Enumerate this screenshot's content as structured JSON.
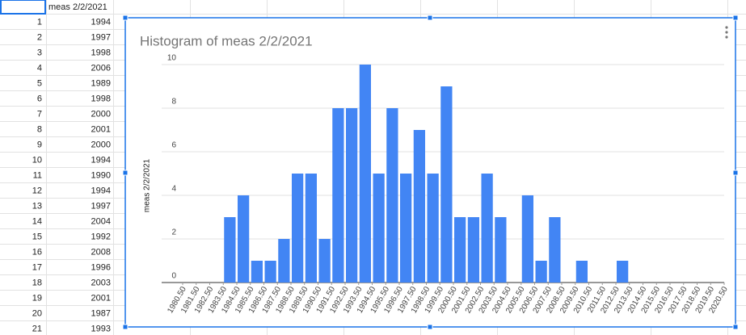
{
  "table": {
    "header": [
      "",
      "meas 2/2/2021"
    ],
    "rows": [
      [
        1,
        1994
      ],
      [
        2,
        1997
      ],
      [
        3,
        1998
      ],
      [
        4,
        2006
      ],
      [
        5,
        1989
      ],
      [
        6,
        1998
      ],
      [
        7,
        2000
      ],
      [
        8,
        2001
      ],
      [
        9,
        2000
      ],
      [
        10,
        1994
      ],
      [
        11,
        1990
      ],
      [
        12,
        1994
      ],
      [
        13,
        1997
      ],
      [
        14,
        2004
      ],
      [
        15,
        1992
      ],
      [
        16,
        2008
      ],
      [
        17,
        1996
      ],
      [
        18,
        2003
      ],
      [
        19,
        2001
      ],
      [
        20,
        1987
      ],
      [
        21,
        1993
      ]
    ]
  },
  "chart_data": {
    "type": "histogram",
    "title": "Histogram of meas 2/2/2021",
    "y_label": "meas 2/2/2021",
    "color": "#4285f4",
    "grid": true,
    "bins": [
      1980.5,
      1981.5,
      1982.5,
      1983.5,
      1984.5,
      1985.5,
      1986.5,
      1987.5,
      1988.5,
      1989.5,
      1990.5,
      1991.5,
      1992.5,
      1993.5,
      1994.5,
      1995.5,
      1996.5,
      1997.5,
      1998.5,
      1999.5,
      2000.5,
      2001.5,
      2002.5,
      2003.5,
      2004.5,
      2005.5,
      2006.5,
      2007.5,
      2008.5,
      2009.5,
      2010.5,
      2011.5,
      2012.5,
      2013.5,
      2014.5,
      2015.5,
      2016.5,
      2017.5,
      2018.5,
      2019.5,
      2020.5
    ],
    "values": [
      0,
      0,
      0,
      3,
      4,
      1,
      1,
      2,
      5,
      5,
      2,
      8,
      8,
      10,
      5,
      8,
      5,
      7,
      5,
      9,
      3,
      3,
      5,
      3,
      0,
      4,
      1,
      3,
      0,
      1,
      0,
      0,
      1,
      0,
      0,
      0,
      0,
      0,
      0,
      0
    ],
    "xlim": [
      1980.5,
      2020.5
    ],
    "xticks": [
      {
        "value": 1980.5,
        "label": "1980.50"
      },
      {
        "value": 1981.5,
        "label": "1981.50"
      },
      {
        "value": 1982.5,
        "label": "1982.50"
      },
      {
        "value": 1983.5,
        "label": "1983.50"
      },
      {
        "value": 1984.5,
        "label": "1984.50"
      },
      {
        "value": 1985.5,
        "label": "1985.50"
      },
      {
        "value": 1986.5,
        "label": "1986.50"
      },
      {
        "value": 1987.5,
        "label": "1987.50"
      },
      {
        "value": 1988.5,
        "label": "1988.50"
      },
      {
        "value": 1989.5,
        "label": "1989.50"
      },
      {
        "value": 1990.5,
        "label": "1990.50"
      },
      {
        "value": 1991.5,
        "label": "1991.50"
      },
      {
        "value": 1992.5,
        "label": "1992.50"
      },
      {
        "value": 1993.5,
        "label": "1993.50"
      },
      {
        "value": 1994.5,
        "label": "1994.50"
      },
      {
        "value": 1995.5,
        "label": "1995.50"
      },
      {
        "value": 1996.5,
        "label": "1996.50"
      },
      {
        "value": 1997.5,
        "label": "1997.50"
      },
      {
        "value": 1998.5,
        "label": "1998.50"
      },
      {
        "value": 1999.5,
        "label": "1999.50"
      },
      {
        "value": 2000.5,
        "label": "2000.50"
      },
      {
        "value": 2001.5,
        "label": "2001.50"
      },
      {
        "value": 2002.5,
        "label": "2002.50"
      },
      {
        "value": 2003.5,
        "label": "2003.50"
      },
      {
        "value": 2004.5,
        "label": "2004.50"
      },
      {
        "value": 2005.5,
        "label": "2005.50"
      },
      {
        "value": 2006.5,
        "label": "2006.50"
      },
      {
        "value": 2007.5,
        "label": "2007.50"
      },
      {
        "value": 2008.5,
        "label": "2008.50"
      },
      {
        "value": 2009.5,
        "label": "2009.50"
      },
      {
        "value": 2010.5,
        "label": "2010.50"
      },
      {
        "value": 2011.5,
        "label": "2011.50"
      },
      {
        "value": 2012.5,
        "label": "2012.50"
      },
      {
        "value": 2013.5,
        "label": "2013.50"
      },
      {
        "value": 2014.5,
        "label": "2014.50"
      },
      {
        "value": 2015.5,
        "label": "2015.50"
      },
      {
        "value": 2016.5,
        "label": "2016.50"
      },
      {
        "value": 2017.5,
        "label": "2017.50"
      },
      {
        "value": 2018.5,
        "label": "2018.50"
      },
      {
        "value": 2019.5,
        "label": "2019.50"
      },
      {
        "value": 2020.5,
        "label": "2020.50"
      }
    ],
    "ylim": [
      0,
      10
    ],
    "yticks": [
      0,
      2,
      4,
      6,
      8,
      10
    ]
  }
}
